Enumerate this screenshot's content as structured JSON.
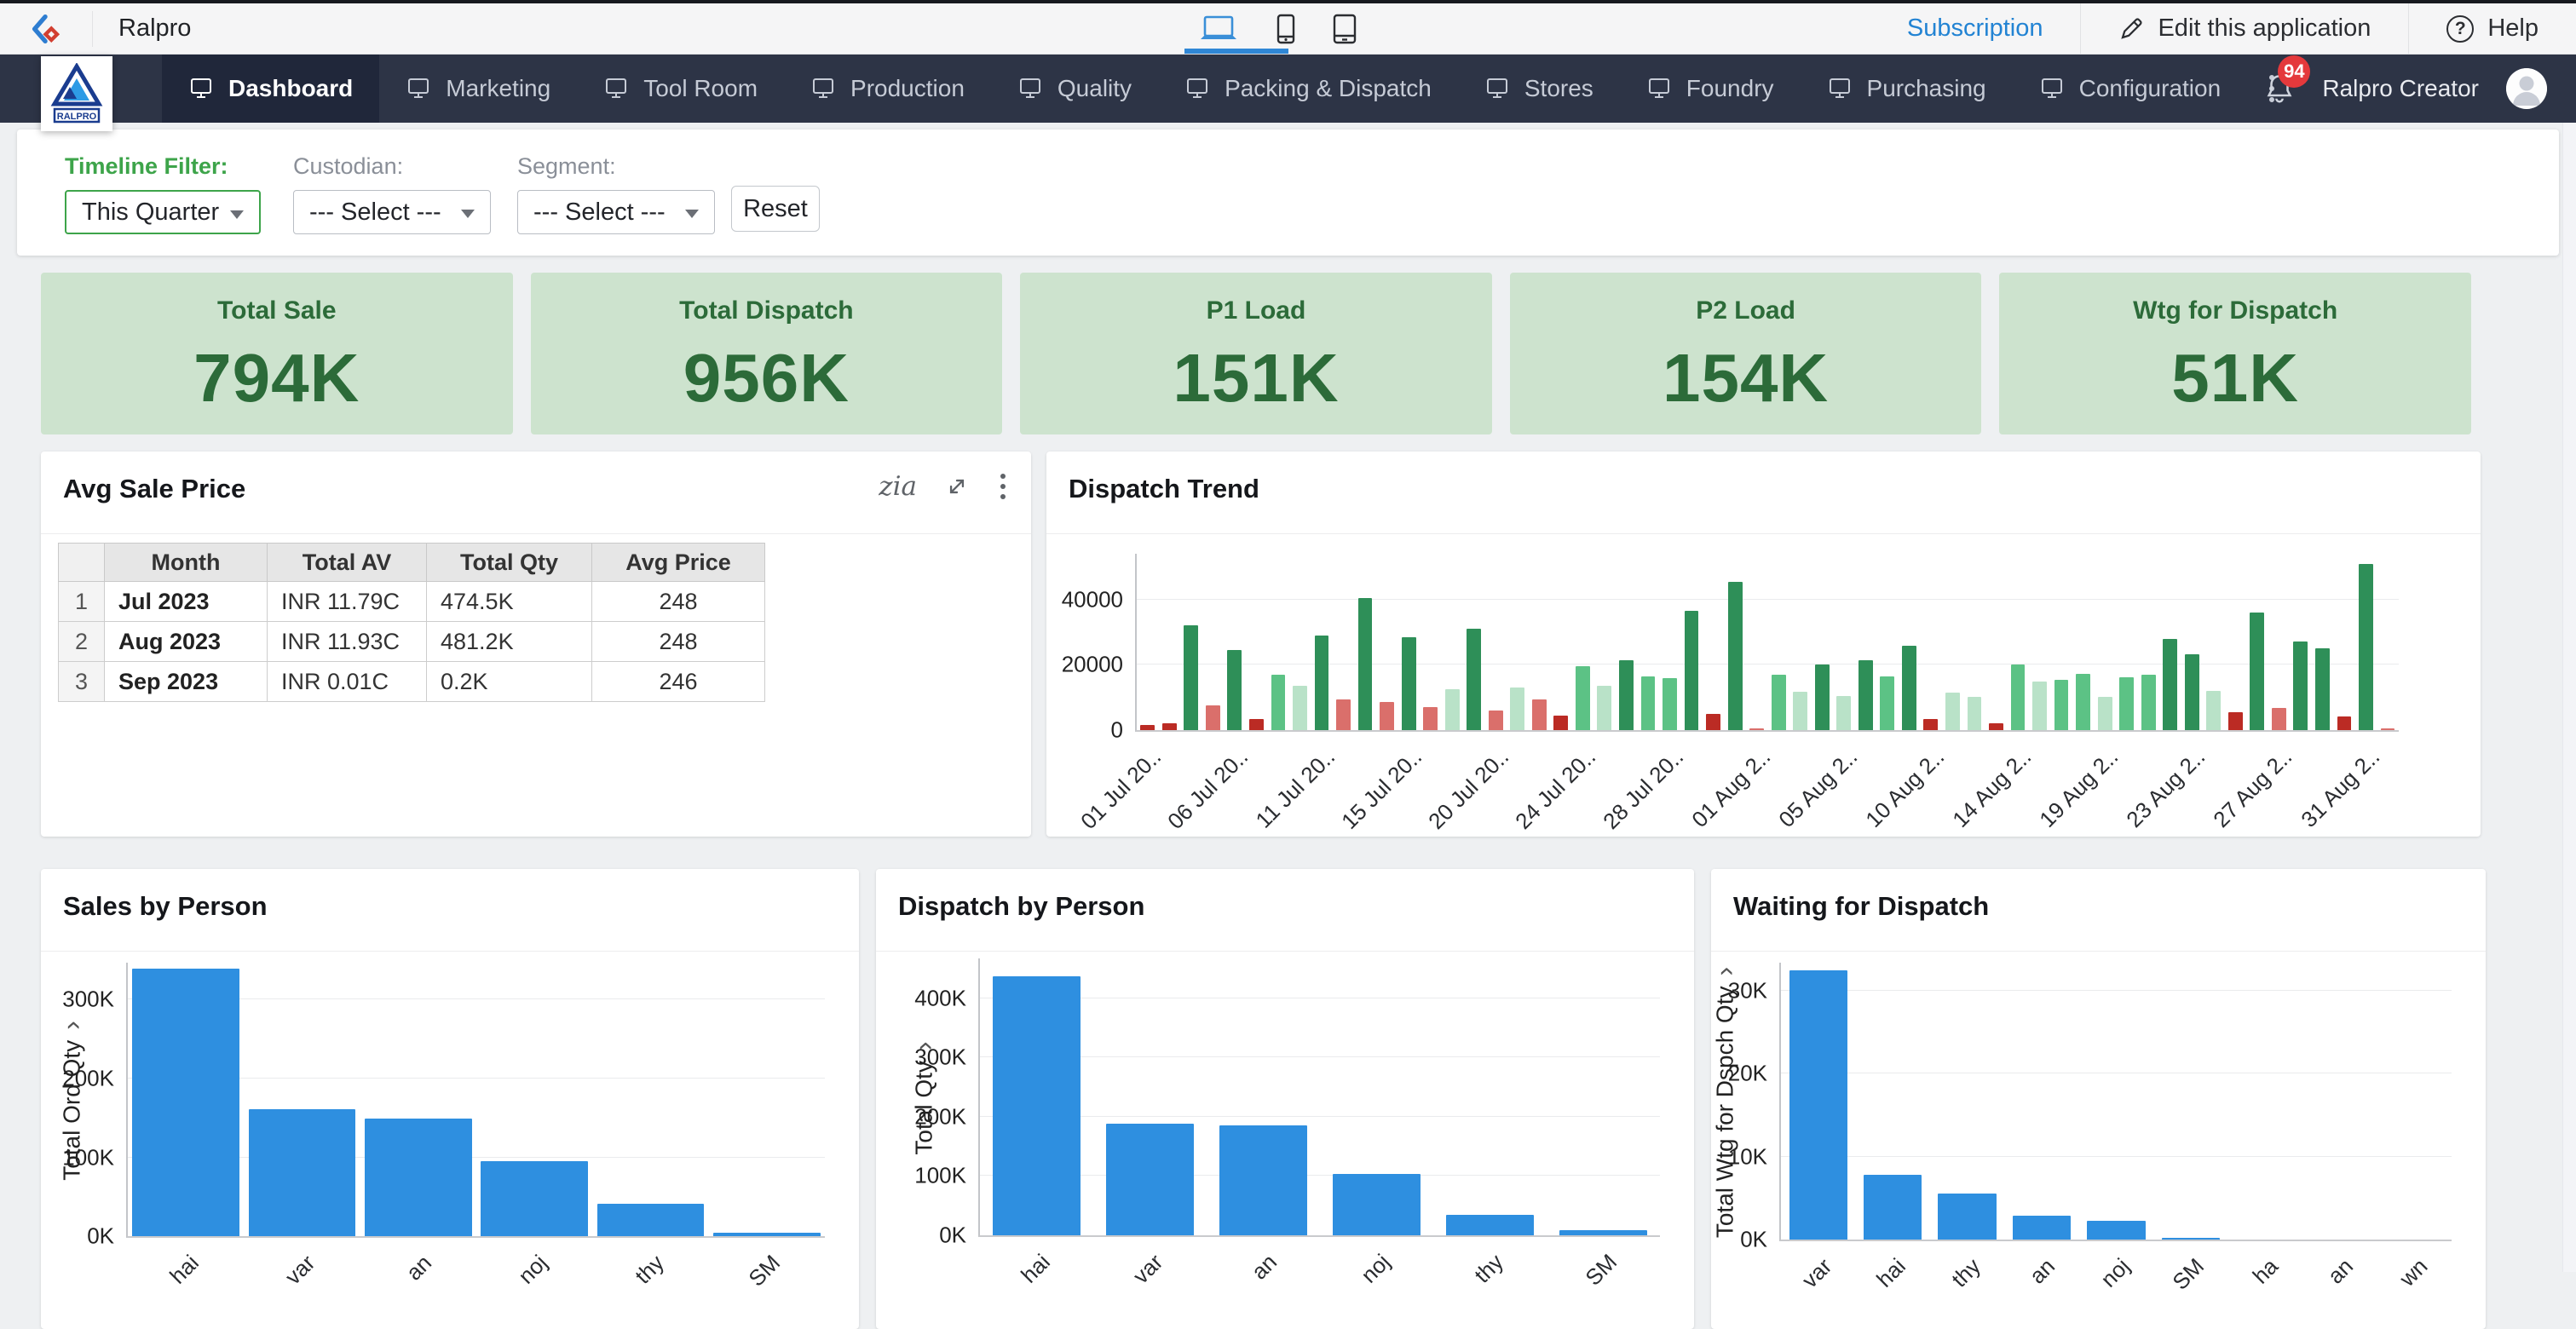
{
  "window": {
    "app_title": "Ralpro",
    "subscription_label": "Subscription",
    "edit_label": "Edit this application",
    "help_label": "Help",
    "devices": [
      "laptop",
      "phone",
      "tablet"
    ],
    "active_device": "laptop"
  },
  "navbar": {
    "logo_text": "RALPRO",
    "items": [
      {
        "label": "Dashboard",
        "active": true
      },
      {
        "label": "Marketing",
        "active": false
      },
      {
        "label": "Tool Room",
        "active": false
      },
      {
        "label": "Production",
        "active": false
      },
      {
        "label": "Quality",
        "active": false
      },
      {
        "label": "Packing & Dispatch",
        "active": false
      },
      {
        "label": "Stores",
        "active": false
      },
      {
        "label": "Foundry",
        "active": false
      },
      {
        "label": "Purchasing",
        "active": false
      },
      {
        "label": "Configuration",
        "active": false
      }
    ],
    "badge": "94",
    "user_name": "Ralpro Creator"
  },
  "filters": {
    "timeline_label": "Timeline Filter:",
    "timeline_value": "This Quarter",
    "custodian_label": "Custodian:",
    "custodian_value": "--- Select ---",
    "segment_label": "Segment:",
    "segment_value": "--- Select ---",
    "reset_label": "Reset"
  },
  "kpis": [
    {
      "label": "Total Sale",
      "value": "794K"
    },
    {
      "label": "Total Dispatch",
      "value": "956K"
    },
    {
      "label": "P1 Load",
      "value": "151K"
    },
    {
      "label": "P2 Load",
      "value": "154K"
    },
    {
      "label": "Wtg for Dispatch",
      "value": "51K"
    }
  ],
  "theme": {
    "navbar_bg": "#2d3446",
    "link_blue": "#2283d3",
    "badge_red": "#e4393c",
    "kpi_bg": "#cde3ce",
    "kpi_text": "#2c6b39",
    "filter_green": "#3da44a",
    "bar_blue": "#2e8fe0"
  },
  "panel_icons": [
    "zia-icon",
    "expand-icon",
    "more-vertical-icon"
  ],
  "chart_data": [
    {
      "id": "avg_sale_price",
      "type": "table",
      "title": "Avg Sale Price",
      "columns": [
        "Month",
        "Total AV",
        "Total Qty",
        "Avg Price"
      ],
      "rows": [
        [
          "1",
          "Jul 2023",
          "INR 11.79C",
          "474.5K",
          "248"
        ],
        [
          "2",
          "Aug 2023",
          "INR 11.93C",
          "481.2K",
          "248"
        ],
        [
          "3",
          "Sep 2023",
          "INR 0.01C",
          "0.2K",
          "246"
        ]
      ]
    },
    {
      "id": "dispatch_trend",
      "type": "bar",
      "title": "Dispatch Trend",
      "ylim": [
        0,
        54000
      ],
      "yticks": [
        {
          "v": 0,
          "label": "0"
        },
        {
          "v": 20000,
          "label": "20000"
        },
        {
          "v": 40000,
          "label": "40000"
        }
      ],
      "x_tick_every": 4,
      "x_tick_labels": [
        "01 Jul 20..",
        "06 Jul 20..",
        "11 Jul 20..",
        "15 Jul 20..",
        "20 Jul 20..",
        "24 Jul 20..",
        "28 Jul 20..",
        "01 Aug 2..",
        "05 Aug 2..",
        "10 Aug 2..",
        "14 Aug 2..",
        "19 Aug 2..",
        "23 Aug 2..",
        "27 Aug 2..",
        "31 Aug 2.."
      ],
      "bar_width_pct": 66,
      "palette": {
        "g3": "#2e8f58",
        "g2": "#5cc285",
        "g1": "#b9e2c8",
        "r2": "#bb2b24",
        "r1": "#da6f6b"
      },
      "bars": [
        [
          1500,
          "r2"
        ],
        [
          2200,
          "r2"
        ],
        [
          32000,
          "g3"
        ],
        [
          7500,
          "r1"
        ],
        [
          24500,
          "g3"
        ],
        [
          3500,
          "r2"
        ],
        [
          17000,
          "g2"
        ],
        [
          13500,
          "g1"
        ],
        [
          29000,
          "g3"
        ],
        [
          9500,
          "r1"
        ],
        [
          40500,
          "g3"
        ],
        [
          8500,
          "r1"
        ],
        [
          28500,
          "g3"
        ],
        [
          7000,
          "r1"
        ],
        [
          12500,
          "g1"
        ],
        [
          31000,
          "g3"
        ],
        [
          6000,
          "r1"
        ],
        [
          13000,
          "g1"
        ],
        [
          9500,
          "r1"
        ],
        [
          4500,
          "r2"
        ],
        [
          19500,
          "g2"
        ],
        [
          13500,
          "g1"
        ],
        [
          21500,
          "g3"
        ],
        [
          16500,
          "g2"
        ],
        [
          16000,
          "g2"
        ],
        [
          36500,
          "g3"
        ],
        [
          5000,
          "r2"
        ],
        [
          45500,
          "g3"
        ],
        [
          600,
          "r1"
        ],
        [
          17000,
          "g2"
        ],
        [
          11800,
          "g1"
        ],
        [
          20000,
          "g3"
        ],
        [
          10500,
          "g1"
        ],
        [
          21500,
          "g3"
        ],
        [
          16500,
          "g2"
        ],
        [
          25800,
          "g3"
        ],
        [
          3500,
          "r2"
        ],
        [
          11500,
          "g1"
        ],
        [
          10200,
          "g1"
        ],
        [
          2200,
          "r2"
        ],
        [
          20000,
          "g2"
        ],
        [
          15000,
          "g1"
        ],
        [
          15500,
          "g2"
        ],
        [
          17200,
          "g2"
        ],
        [
          10300,
          "g1"
        ],
        [
          16300,
          "g2"
        ],
        [
          17000,
          "g2"
        ],
        [
          28000,
          "g3"
        ],
        [
          23200,
          "g3"
        ],
        [
          12000,
          "g1"
        ],
        [
          5500,
          "r2"
        ],
        [
          36000,
          "g3"
        ],
        [
          6800,
          "r1"
        ],
        [
          27200,
          "g3"
        ],
        [
          25000,
          "g3"
        ],
        [
          4300,
          "r2"
        ],
        [
          51000,
          "g3"
        ],
        [
          400,
          "r1"
        ]
      ]
    },
    {
      "id": "sales_by_person",
      "type": "bar",
      "title": "Sales by Person",
      "ylabel": "Total Ord Qty",
      "ylim": [
        0,
        347000
      ],
      "yticks": [
        {
          "v": 0,
          "label": "0K"
        },
        {
          "v": 100000,
          "label": "100K"
        },
        {
          "v": 200000,
          "label": "200K"
        },
        {
          "v": 300000,
          "label": "300K"
        }
      ],
      "bar_color": "#2e8fe0",
      "bar_width_pct": 92,
      "categories": [
        "hai",
        "var",
        "an",
        "noj",
        "thy",
        "SM"
      ],
      "values": [
        339000,
        161000,
        149000,
        95000,
        41000,
        4000
      ]
    },
    {
      "id": "dispatch_by_person",
      "type": "bar",
      "title": "Dispatch by Person",
      "ylabel": "Total Qty",
      "ylim": [
        0,
        467000
      ],
      "yticks": [
        {
          "v": 0,
          "label": "0K"
        },
        {
          "v": 100000,
          "label": "100K"
        },
        {
          "v": 200000,
          "label": "200K"
        },
        {
          "v": 300000,
          "label": "300K"
        },
        {
          "v": 400000,
          "label": "400K"
        }
      ],
      "bar_color": "#2e8fe0",
      "bar_width_pct": 78,
      "categories": [
        "hai",
        "var",
        "an",
        "noj",
        "thy",
        "SM"
      ],
      "values": [
        437000,
        188000,
        185000,
        103000,
        35000,
        8000
      ]
    },
    {
      "id": "waiting_for_dispatch",
      "type": "bar",
      "title": "Waiting for Dispatch",
      "ylabel": "Total Wtg for Dspch Qty",
      "ylim": [
        0,
        33400
      ],
      "yticks": [
        {
          "v": 0,
          "label": "0K"
        },
        {
          "v": 10000,
          "label": "10K"
        },
        {
          "v": 20000,
          "label": "20K"
        },
        {
          "v": 30000,
          "label": "30K"
        }
      ],
      "bar_color": "#2e8fe0",
      "bar_width_pct": 78,
      "categories": [
        "var",
        "hai",
        "thy",
        "an",
        "noj",
        "SM",
        "ha",
        "an",
        "wn"
      ],
      "values": [
        32500,
        7800,
        5600,
        2900,
        2300,
        250,
        0,
        0,
        0
      ]
    }
  ]
}
